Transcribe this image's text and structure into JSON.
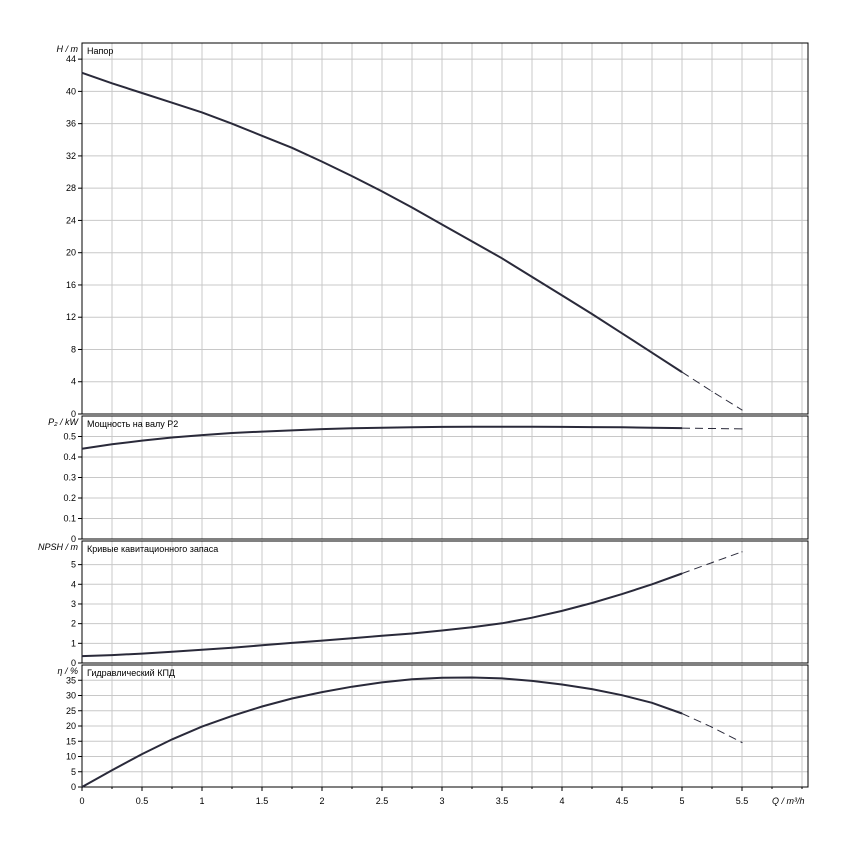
{
  "chart_data": [
    {
      "type": "line",
      "title": "Напор",
      "ylabel": "H / m",
      "ylim": [
        0,
        46
      ],
      "yticks": [
        0,
        4,
        8,
        12,
        16,
        20,
        24,
        28,
        32,
        36,
        40,
        44
      ],
      "xlim": [
        0,
        6.05
      ],
      "x": [
        0,
        0.25,
        0.5,
        0.75,
        1,
        1.25,
        1.5,
        1.75,
        2,
        2.25,
        2.5,
        2.75,
        3,
        3.25,
        3.5,
        3.75,
        4,
        4.25,
        4.5,
        4.75,
        5,
        5.25,
        5.5
      ],
      "series": [
        {
          "values": [
            42.3,
            41.0,
            39.8,
            38.6,
            37.4,
            36.0,
            34.5,
            33.0,
            31.3,
            29.5,
            27.6,
            25.6,
            23.5,
            21.4,
            19.3,
            17.0,
            14.7,
            12.4,
            10.0,
            7.6,
            5.2,
            2.8,
            0.5
          ]
        }
      ],
      "dashed_from_x": 5
    },
    {
      "type": "line",
      "title": "Мощность на валу P2",
      "ylabel": "P₂ / kW",
      "ylim": [
        0,
        0.6
      ],
      "yticks": [
        0,
        0.1,
        0.2,
        0.3,
        0.4,
        0.5
      ],
      "xlim": [
        0,
        6.05
      ],
      "x": [
        0,
        0.25,
        0.5,
        0.75,
        1,
        1.25,
        1.5,
        1.75,
        2,
        2.25,
        2.5,
        2.75,
        3,
        3.25,
        3.5,
        3.75,
        4,
        4.25,
        4.5,
        4.75,
        5,
        5.25,
        5.5
      ],
      "series": [
        {
          "values": [
            0.44,
            0.462,
            0.48,
            0.495,
            0.507,
            0.517,
            0.524,
            0.53,
            0.536,
            0.54,
            0.543,
            0.545,
            0.547,
            0.548,
            0.548,
            0.548,
            0.547,
            0.546,
            0.545,
            0.543,
            0.541,
            0.539,
            0.537
          ]
        }
      ],
      "dashed_from_x": 5
    },
    {
      "type": "line",
      "title": "Кривые кавитационного запаса",
      "ylabel": "NPSH / m",
      "ylim": [
        0,
        6.2
      ],
      "yticks": [
        0,
        1,
        2,
        3,
        4,
        5
      ],
      "xlim": [
        0,
        6.05
      ],
      "x": [
        0,
        0.25,
        0.5,
        0.75,
        1,
        1.25,
        1.5,
        1.75,
        2,
        2.25,
        2.5,
        2.75,
        3,
        3.25,
        3.5,
        3.75,
        4,
        4.25,
        4.5,
        4.75,
        5,
        5.25,
        5.5
      ],
      "series": [
        {
          "values": [
            0.35,
            0.4,
            0.48,
            0.57,
            0.67,
            0.78,
            0.9,
            1.02,
            1.14,
            1.26,
            1.38,
            1.5,
            1.65,
            1.82,
            2.02,
            2.3,
            2.65,
            3.05,
            3.5,
            4.0,
            4.55,
            5.1,
            5.65
          ]
        }
      ],
      "dashed_from_x": 5
    },
    {
      "type": "line",
      "title": "Гидравлический КПД",
      "ylabel": "η / %",
      "ylim": [
        0,
        40
      ],
      "yticks": [
        0,
        5,
        10,
        15,
        20,
        25,
        30,
        35
      ],
      "xlim": [
        0,
        6.05
      ],
      "xlabel": "Q / m³/h",
      "xticks": [
        0,
        0.5,
        1,
        1.5,
        2,
        2.5,
        3,
        3.5,
        4,
        4.5,
        5,
        5.5
      ],
      "x": [
        0,
        0.25,
        0.5,
        0.75,
        1,
        1.25,
        1.5,
        1.75,
        2,
        2.25,
        2.5,
        2.75,
        3,
        3.25,
        3.5,
        3.75,
        4,
        4.25,
        4.5,
        4.75,
        5,
        5.25,
        5.5
      ],
      "series": [
        {
          "values": [
            0,
            5.5,
            10.8,
            15.6,
            19.8,
            23.3,
            26.4,
            29.0,
            31.1,
            32.9,
            34.3,
            35.3,
            35.8,
            35.9,
            35.6,
            34.8,
            33.6,
            32.1,
            30.1,
            27.6,
            24.1,
            19.6,
            14.6
          ]
        }
      ],
      "dashed_from_x": 5
    }
  ]
}
